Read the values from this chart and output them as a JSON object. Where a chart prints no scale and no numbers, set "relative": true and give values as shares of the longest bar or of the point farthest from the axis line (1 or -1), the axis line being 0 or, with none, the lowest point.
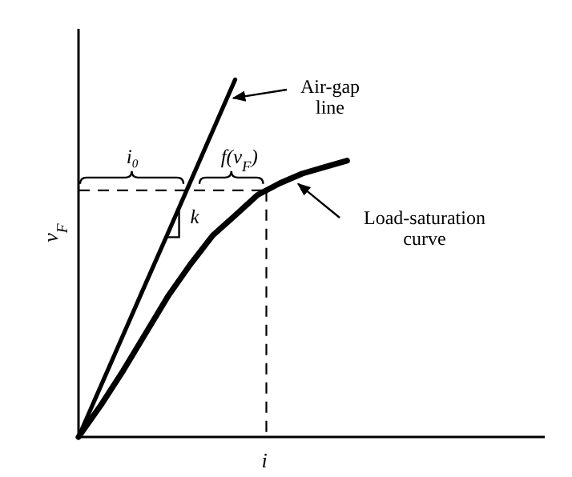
{
  "chart_data": {
    "type": "line",
    "relative": true,
    "xlabel": "i",
    "ylabel": "v$_{F}$",
    "legend": "right",
    "categories": [
      null,
      null,
      null,
      null,
      null,
      null,
      null,
      null,
      null,
      null,
      null,
      null,
      null
    ],
    "series": [
      {
        "name": "Air-gap line",
        "color": "#000000",
        "values": [
          0,
          0.143,
          0.286,
          0.429,
          0.571,
          0.714,
          0.857,
          1,
          null,
          null,
          null,
          null,
          null
        ]
      },
      {
        "name": "Load-saturation curve",
        "color": "#000000",
        "values": [
          0,
          0.089,
          0.186,
          0.29,
          0.394,
          0.483,
          0.564,
          0.62,
          0.677,
          0.71,
          0.737,
          0.755,
          0.773
        ]
      }
    ],
    "ref_lines": [
      {
        "axis": "y",
        "value": 0.69,
        "line_style": "dashed"
      }
    ],
    "annotations": [
      "i₀",
      "f(v$_{F}$)",
      "k"
    ]
  }
}
